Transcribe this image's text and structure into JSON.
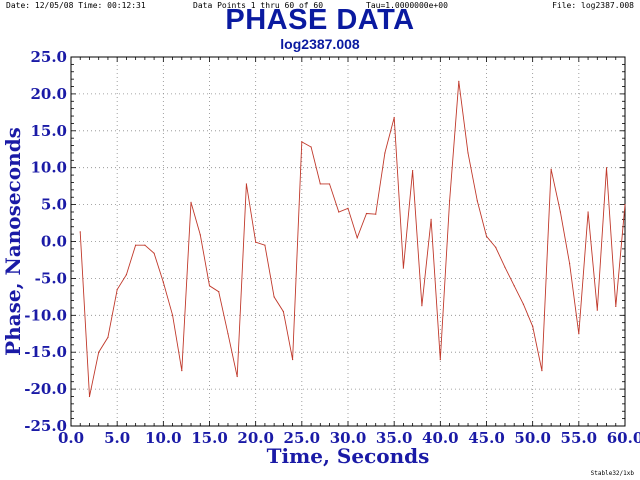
{
  "header": {
    "date": "Date: 12/05/08  Time: 00:12:31",
    "points": "Data Points 1 thru 60 of 60",
    "tau": "Tau=1.0000000e+00",
    "file": "File: log2387.008"
  },
  "footer": "Stable32/1xb",
  "chart_data": {
    "type": "line",
    "title": "PHASE DATA",
    "subtitle": "log2387.008",
    "xlabel": "Time,  Seconds",
    "ylabel": "Phase,  Nanoseconds",
    "xlim": [
      0,
      60
    ],
    "ylim": [
      -25,
      25
    ],
    "grid": true,
    "line_color": "#c0392b",
    "title_color": "#0a1aa0",
    "x_ticks": [
      "0.0",
      "5.0",
      "10.0",
      "15.0",
      "20.0",
      "25.0",
      "30.0",
      "35.0",
      "40.0",
      "45.0",
      "50.0",
      "55.0",
      "60.0"
    ],
    "y_ticks": [
      "25.0",
      "20.0",
      "15.0",
      "10.0",
      "5.0",
      "0.0",
      "-5.0",
      "-10.0",
      "-15.0",
      "-20.0",
      "-25.0"
    ],
    "series": [
      {
        "x": [
          1,
          2,
          3,
          4,
          5,
          6,
          7,
          8,
          9,
          10,
          11,
          12,
          13,
          14,
          15,
          16,
          17,
          18,
          19,
          20,
          21,
          22,
          23,
          24,
          25,
          26,
          27,
          28,
          29,
          30,
          31,
          32,
          33,
          34,
          35,
          36,
          37,
          38,
          39,
          40,
          41,
          42,
          43,
          44,
          45,
          46,
          47,
          48,
          49,
          50,
          51,
          52,
          53,
          54,
          55,
          56,
          57,
          58,
          59,
          60
        ],
        "values": [
          1.3,
          -21.0,
          -15.0,
          -13.0,
          -6.5,
          -4.5,
          -0.5,
          -0.5,
          -1.6,
          -5.5,
          -10.0,
          -17.5,
          5.3,
          0.9,
          -6.0,
          -6.8,
          -12.5,
          -18.3,
          7.8,
          -0.1,
          -0.5,
          -7.5,
          -9.5,
          -16.0,
          13.5,
          12.8,
          7.8,
          7.8,
          4.0,
          4.5,
          0.5,
          3.8,
          3.7,
          12.0,
          16.8,
          -3.6,
          9.6,
          -8.7,
          3.0,
          -16.0,
          5.5,
          21.7,
          12.0,
          5.5,
          0.7,
          -0.8,
          -3.5,
          -6.0,
          -8.5,
          -11.5,
          -17.5,
          9.8,
          4.0,
          -3.0,
          -12.5,
          4.0,
          -9.3,
          10.0,
          -8.8,
          5.0
        ]
      }
    ]
  }
}
